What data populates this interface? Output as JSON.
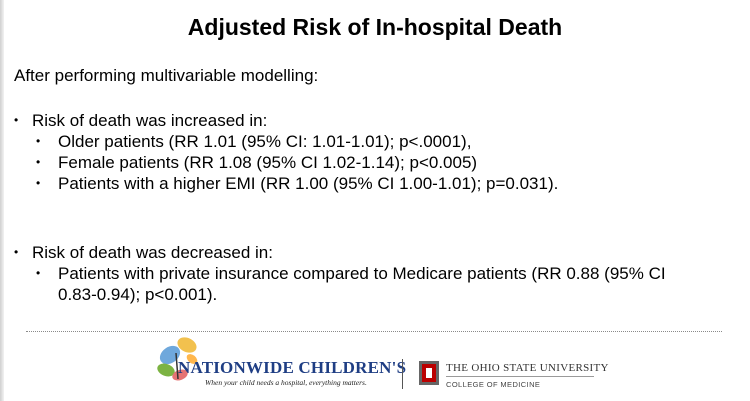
{
  "slide": {
    "title": "Adjusted Risk of In-hospital Death",
    "intro": "After performing multivariable modelling:",
    "sections": [
      {
        "heading": "Risk of death was increased in:",
        "items": [
          "Older patients (RR 1.01 (95% CI: 1.01-1.01); p<.0001),",
          "Female patients (RR 1.08 (95% CI 1.02-1.14); p<0.005)",
          "Patients with a higher EMI (RR 1.00 (95% CI 1.00-1.01); p=0.031)."
        ]
      },
      {
        "heading": "Risk of death was decreased in:",
        "items": [
          "Patients with private insurance compared to Medicare patients (RR 0.88 (95% CI 0.83-0.94); p<0.001)."
        ]
      }
    ],
    "bullet_glyph": "•"
  },
  "footer": {
    "nationwide_name": "NATIONWIDE CHILDREN'S",
    "nationwide_tagline": "When your child needs a hospital, everything matters.",
    "osu_name": "THE OHIO STATE UNIVERSITY",
    "osu_college": "COLLEGE OF MEDICINE",
    "colors": {
      "nationwide_blue": "#1f3e84",
      "osu_scarlet": "#bb0000",
      "osu_gray": "#666666"
    }
  }
}
